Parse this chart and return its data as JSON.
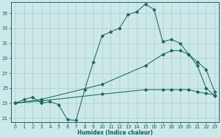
{
  "xlabel": "Humidex (Indice chaleur)",
  "ylabel": "",
  "xlim": [
    -0.5,
    23.5
  ],
  "ylim": [
    20.5,
    36.5
  ],
  "xticks": [
    0,
    1,
    2,
    3,
    4,
    5,
    6,
    7,
    8,
    9,
    10,
    11,
    12,
    13,
    14,
    15,
    16,
    17,
    18,
    19,
    20,
    21,
    22,
    23
  ],
  "yticks": [
    21,
    23,
    25,
    27,
    29,
    31,
    33,
    35
  ],
  "background_color": "#cce8e8",
  "grid_color": "#aacccc",
  "line_color": "#1a6b60",
  "line1_x": [
    0,
    1,
    2,
    3,
    4,
    5,
    6,
    7,
    8,
    9,
    10,
    11,
    12,
    13,
    14,
    15,
    16,
    17,
    18,
    19,
    20,
    21,
    22,
    23
  ],
  "line1_y": [
    23.0,
    23.5,
    23.8,
    23.0,
    23.2,
    22.8,
    20.8,
    20.7,
    24.8,
    28.5,
    32.0,
    32.5,
    33.0,
    34.8,
    35.2,
    36.2,
    35.5,
    31.2,
    31.5,
    31.0,
    29.5,
    28.0,
    25.0,
    24.0
  ],
  "line2_x": [
    0,
    3,
    10,
    15,
    17,
    18,
    19,
    20,
    21,
    22,
    23
  ],
  "line2_y": [
    23.0,
    23.5,
    25.5,
    28.0,
    29.5,
    30.0,
    30.0,
    29.5,
    28.5,
    27.5,
    24.5
  ],
  "line3_x": [
    0,
    3,
    10,
    15,
    17,
    18,
    19,
    20,
    21,
    22,
    23
  ],
  "line3_y": [
    23.0,
    23.3,
    24.2,
    24.8,
    24.8,
    24.8,
    24.8,
    24.8,
    24.5,
    24.3,
    24.1
  ],
  "figsize": [
    3.2,
    2.0
  ],
  "dpi": 100
}
